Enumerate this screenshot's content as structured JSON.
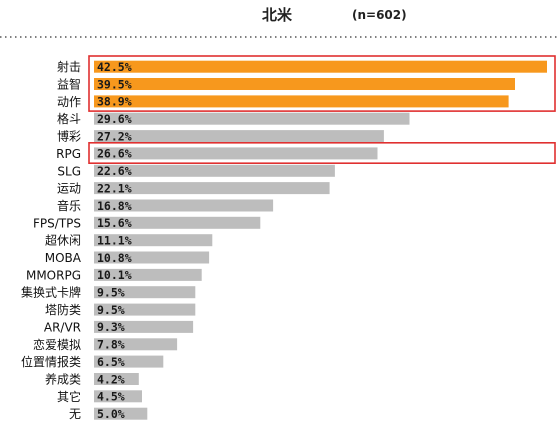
{
  "chart_data": {
    "type": "bar",
    "orientation": "horizontal",
    "title": "北米",
    "subtitle": "(n=602)",
    "xlabel": "",
    "ylabel": "",
    "xlim": [
      0,
      43
    ],
    "grid": false,
    "legend": "none",
    "categories": [
      "射击",
      "益智",
      "动作",
      "格斗",
      "博彩",
      "RPG",
      "SLG",
      "运动",
      "音乐",
      "FPS/TPS",
      "超休闲",
      "MOBA",
      "MMORPG",
      "集换式卡牌",
      "塔防类",
      "AR/VR",
      "恋爱模拟",
      "位置情报类",
      "养成类",
      "其它",
      "无"
    ],
    "values": [
      42.5,
      39.5,
      38.9,
      29.6,
      27.2,
      26.6,
      22.6,
      22.1,
      16.8,
      15.6,
      11.1,
      10.8,
      10.1,
      9.5,
      9.5,
      9.3,
      7.8,
      6.5,
      4.2,
      4.5,
      5.0
    ],
    "value_labels": [
      "42.5%",
      "39.5%",
      "38.9%",
      "29.6%",
      "27.2%",
      "26.6%",
      "22.6%",
      "22.1%",
      "16.8%",
      "15.6%",
      "11.1%",
      "10.8%",
      "10.1%",
      "9.5%",
      "9.5%",
      "9.3%",
      "7.8%",
      "6.5%",
      "4.2%",
      "4.5%",
      "5.0%"
    ],
    "highlighted": [
      true,
      true,
      true,
      false,
      false,
      false,
      false,
      false,
      false,
      false,
      false,
      false,
      false,
      false,
      false,
      false,
      false,
      false,
      false,
      false,
      false
    ],
    "colors": {
      "highlight": "#f7981d",
      "default": "#bdbdbd",
      "box": "#e03030"
    }
  }
}
